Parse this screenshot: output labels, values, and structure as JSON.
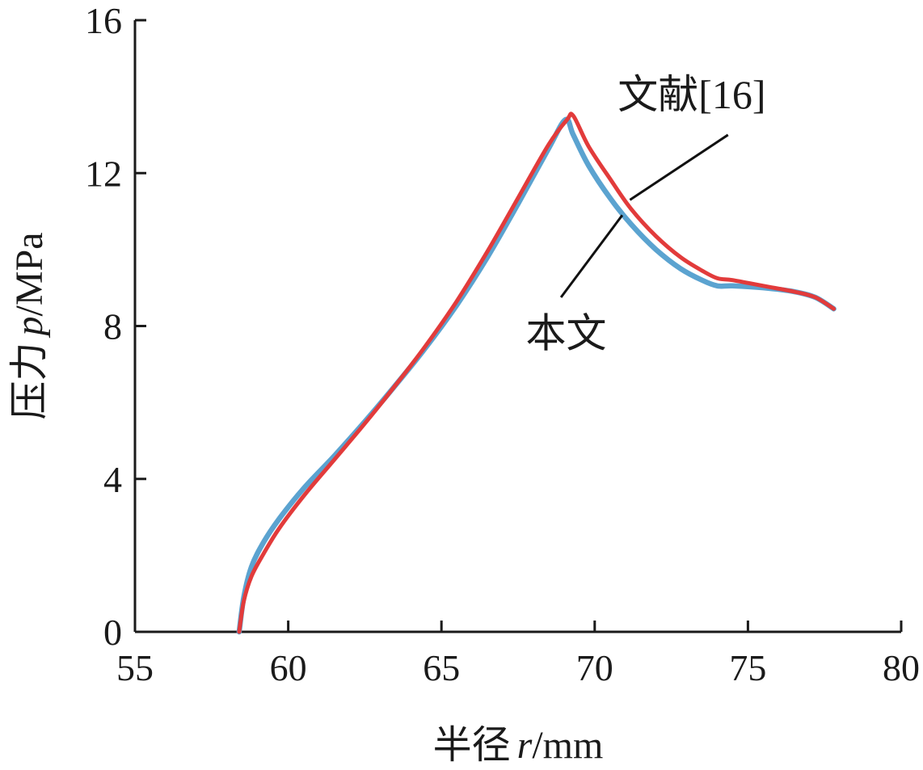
{
  "chart_data": {
    "type": "line",
    "title": "",
    "xlabel": "半径 r/mm",
    "xlabel_parts": {
      "text": "半径",
      "var": "r",
      "unit": "/mm"
    },
    "ylabel": "压力 p/MPa",
    "ylabel_parts": {
      "text": "压力",
      "var": "p",
      "unit": "/MPa"
    },
    "xlim": [
      55,
      80
    ],
    "ylim": [
      0,
      16
    ],
    "xticks": [
      55,
      60,
      65,
      70,
      75,
      80
    ],
    "yticks": [
      0,
      4,
      8,
      12,
      16
    ],
    "grid": false,
    "series": [
      {
        "name": "文献[16]",
        "color": "#5ba3d0",
        "x": [
          58.4,
          58.55,
          58.8,
          59.2,
          59.7,
          60.5,
          61.5,
          62.5,
          63.5,
          64.5,
          65.5,
          66.5,
          67.5,
          68.5,
          69.05,
          69.3,
          69.8,
          70.5,
          71.2,
          72.0,
          72.8,
          73.5,
          74.0,
          74.5,
          75.5,
          76.5,
          77.2,
          77.8
        ],
        "values": [
          0.0,
          0.9,
          1.7,
          2.35,
          2.95,
          3.75,
          4.6,
          5.5,
          6.45,
          7.45,
          8.55,
          9.8,
          11.2,
          12.65,
          13.4,
          13.0,
          12.2,
          11.35,
          10.65,
          10.0,
          9.5,
          9.2,
          9.05,
          9.05,
          9.0,
          8.9,
          8.75,
          8.45
        ]
      },
      {
        "name": "本文",
        "color": "#e23b3b",
        "x": [
          58.4,
          58.55,
          58.8,
          59.2,
          59.7,
          60.5,
          61.5,
          62.5,
          63.5,
          64.5,
          65.5,
          66.5,
          67.5,
          68.5,
          69.1,
          69.3,
          69.8,
          70.5,
          71.2,
          72.0,
          72.8,
          73.5,
          74.0,
          74.5,
          75.5,
          76.5,
          77.2,
          77.8
        ],
        "values": [
          0.0,
          0.8,
          1.45,
          2.05,
          2.7,
          3.55,
          4.5,
          5.45,
          6.45,
          7.5,
          8.65,
          9.95,
          11.35,
          12.75,
          13.4,
          13.5,
          12.7,
          11.85,
          11.05,
          10.35,
          9.8,
          9.45,
          9.25,
          9.2,
          9.05,
          8.9,
          8.75,
          8.45
        ]
      }
    ],
    "annotations": [
      {
        "text": "文献[16]",
        "series": "文献[16]"
      },
      {
        "text": "本文",
        "series": "本文"
      }
    ]
  }
}
